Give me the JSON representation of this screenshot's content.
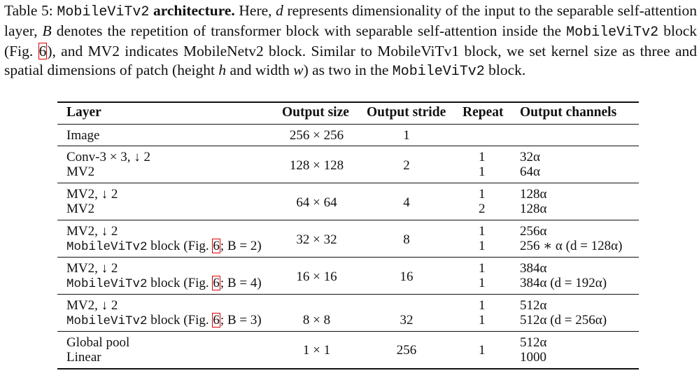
{
  "caption": {
    "label": "Table 5:",
    "model": "MobileViTv2",
    "bold_title": "architecture.",
    "t1": "Here, ",
    "var_d": "d",
    "t2": " represents dimensionality of the input to the separable self-attention layer, ",
    "var_B": "B",
    "t3": " denotes the repetition of transformer block with separable self-attention inside the ",
    "t4": " block (Fig. ",
    "fig_ref": "6",
    "t5": "), and MV2 indicates MobileNetv2 block. Similar to MobileViTv1 block, we set kernel size as three and spatial dimensions of patch (height ",
    "var_h": "h",
    "t6": " and width ",
    "var_w": "w",
    "t7": ") as two in the ",
    "t8": " block."
  },
  "table": {
    "headers": [
      "Layer",
      "Output size",
      "Output stride",
      "Repeat",
      "Output channels"
    ],
    "rows": [
      {
        "layer": [
          "Image"
        ],
        "size": "256 × 256",
        "stride": "1",
        "repeat": [],
        "channels": []
      },
      {
        "layer": [
          "Conv-3 × 3, ↓ 2",
          "MV2"
        ],
        "size": "128 × 128",
        "stride": "2",
        "repeat": [
          "1",
          "1"
        ],
        "channels": [
          "32α",
          "64α"
        ]
      },
      {
        "layer": [
          "MV2, ↓ 2",
          "MV2"
        ],
        "size": "64 × 64",
        "stride": "4",
        "repeat": [
          "1",
          "2"
        ],
        "channels": [
          "128α",
          "128α"
        ]
      },
      {
        "layer": [
          "MV2, ↓ 2"
        ],
        "block": {
          "name": "MobileViTv2",
          "text": " block (Fig. ",
          "ref": "6",
          "b": "; B = 2)"
        },
        "size": "32 × 32",
        "stride": "8",
        "repeat": [
          "1",
          "1"
        ],
        "channels": [
          "256α",
          "256 ∗ α (d = 128α)"
        ]
      },
      {
        "layer": [
          "MV2, ↓ 2"
        ],
        "block": {
          "name": "MobileViTv2",
          "text": " block (Fig. ",
          "ref": "6",
          "b": "; B = 4)"
        },
        "size": "16 × 16",
        "stride": "16",
        "repeat": [
          "1",
          "1"
        ],
        "channels": [
          "384α",
          "384α (d = 192α)"
        ]
      },
      {
        "layer": [
          "MV2, ↓ 2"
        ],
        "block": {
          "name": "MobileViTv2",
          "text": " block (Fig. ",
          "ref": "6",
          "b": "; B = 3)"
        },
        "size": "8 × 8",
        "stride": "32",
        "repeat": [
          "1",
          "1"
        ],
        "channels": [
          "512α",
          "512α (d = 256α)"
        ]
      }
    ],
    "last_row": {
      "layer": [
        "Global pool",
        "Linear"
      ],
      "size": "1 × 1",
      "stride": "256",
      "repeat": "1",
      "channels": [
        "512α",
        "1000"
      ]
    }
  }
}
